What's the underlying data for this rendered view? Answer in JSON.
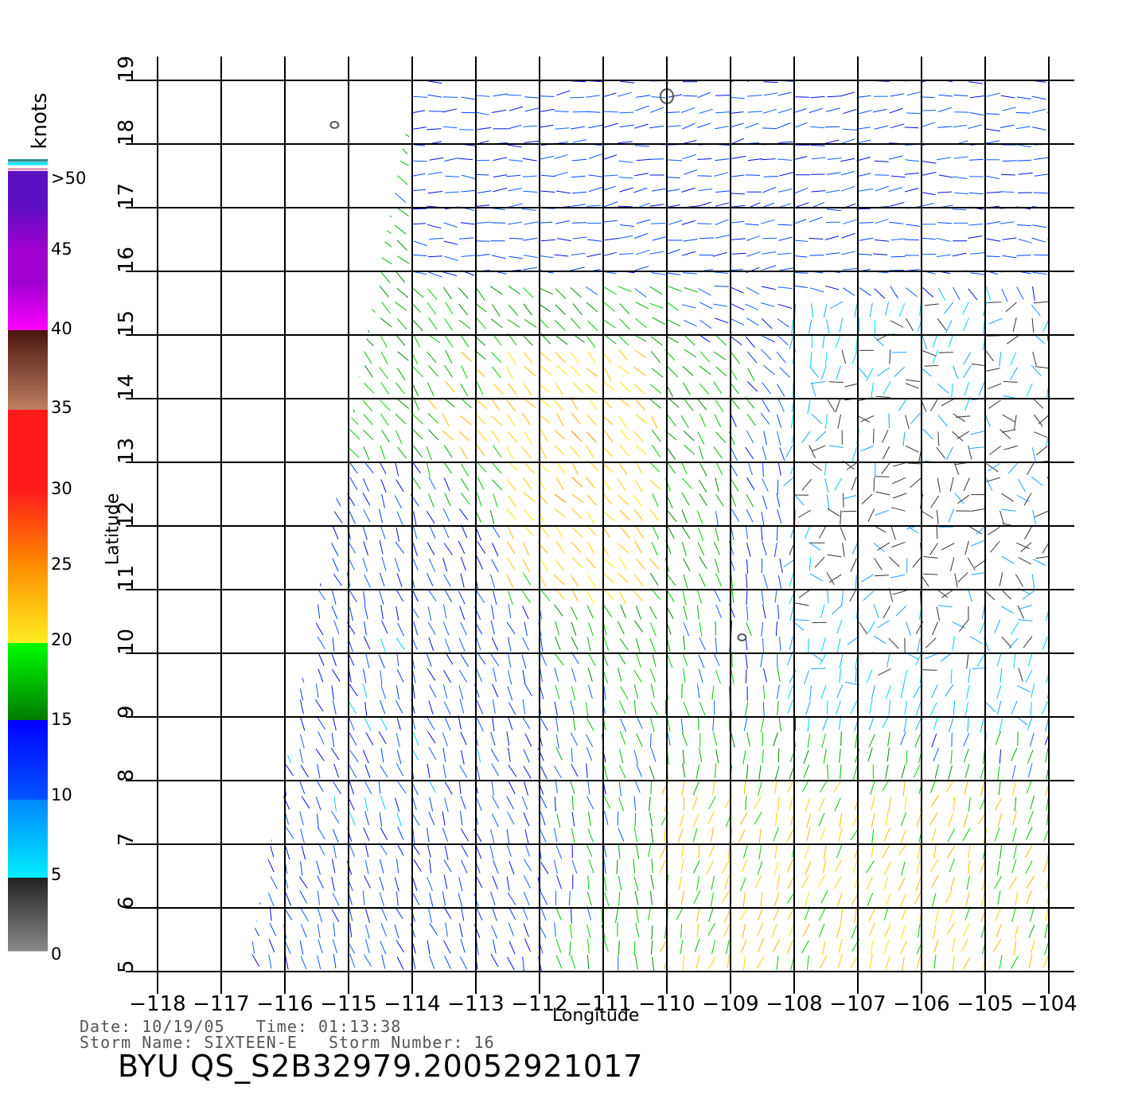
{
  "map": {
    "lon_ticks": [
      -118,
      -117,
      -116,
      -115,
      -114,
      -113,
      -112,
      -111,
      -110,
      -109,
      -108,
      -107,
      -106,
      -105,
      -104
    ],
    "lat_ticks": [
      5,
      6,
      7,
      8,
      9,
      10,
      11,
      12,
      13,
      14,
      15,
      16,
      17,
      18,
      19
    ],
    "lon_tick_labels": [
      "−118",
      "−117",
      "−116",
      "−115",
      "−114",
      "−113",
      "−112",
      "−111",
      "−110",
      "−109",
      "−108",
      "−107",
      "−106",
      "−105",
      "−104"
    ],
    "lat_tick_labels": [
      "5",
      "6",
      "7",
      "8",
      "9",
      "10",
      "11",
      "12",
      "13",
      "14",
      "15",
      "16",
      "17",
      "18",
      "19"
    ],
    "lon_range": [
      -118,
      -104
    ],
    "lat_range": [
      5,
      19
    ],
    "xlabel": "Longitude",
    "ylabel": "Latitude",
    "swath_corners": {
      "top_left": [
        -113.95,
        19
      ],
      "top_right": [
        -104,
        19
      ],
      "bottom_right": [
        -104,
        5
      ],
      "bottom_left": [
        -116.6,
        5
      ]
    },
    "islands": [
      {
        "name": "",
        "lon": -110.0,
        "lat": 18.75
      },
      {
        "name": "",
        "lon": -115.22,
        "lat": 18.3
      },
      {
        "name": "",
        "lon": -108.82,
        "lat": 10.25
      }
    ]
  },
  "colorbar": {
    "title": "knots",
    "labels": [
      ">50",
      "45",
      "40",
      "35",
      "30",
      "25",
      "20",
      "15",
      "10",
      "5",
      "0"
    ],
    "colors": {
      "gt50": "#5a0fc0",
      "45_50": "#a000d0",
      "40_45": "#ff00ff",
      "35_40_top": "#4a1510",
      "35_40_bottom": "#c08060",
      "30_35": "#ff1a1a",
      "25_30": "#ff8c00",
      "20_25": "#ffee22",
      "15_20_top": "#00ff00",
      "15_20_bottom": "#007a00",
      "10_15": "#0000ff",
      "5_10": "#00eeff",
      "0_5_top": "#222222",
      "0_5_bottom": "#8a8a8a"
    }
  },
  "wind_fields": [
    {
      "region": "north",
      "lon": [
        -114,
        -104
      ],
      "lat": [
        16,
        19
      ],
      "speed_kt": 12,
      "direction_deg": 80
    },
    {
      "region": "storm-core",
      "lon": [
        -112.5,
        -110.5
      ],
      "lat": [
        11,
        14.8
      ],
      "speed_kt": 24,
      "direction_deg": 140
    },
    {
      "region": "calm-east",
      "lon": [
        -108,
        -104
      ],
      "lat": [
        9,
        15.5
      ],
      "speed_kt": 4,
      "direction_deg": 200
    },
    {
      "region": "south",
      "lon": [
        -110,
        -104
      ],
      "lat": [
        5,
        8
      ],
      "speed_kt": 21,
      "direction_deg": 200
    },
    {
      "region": "west",
      "lon": [
        -116,
        -112
      ],
      "lat": [
        5,
        13
      ],
      "speed_kt": 11,
      "direction_deg": 160
    }
  ],
  "footer": {
    "date_line": "Date: 10/19/05   Time: 01:13:38",
    "storm_line": "Storm Name: SIXTEEN-E   Storm Number: 16",
    "file_line": "BYU QS_S2B32979.20052921017"
  }
}
